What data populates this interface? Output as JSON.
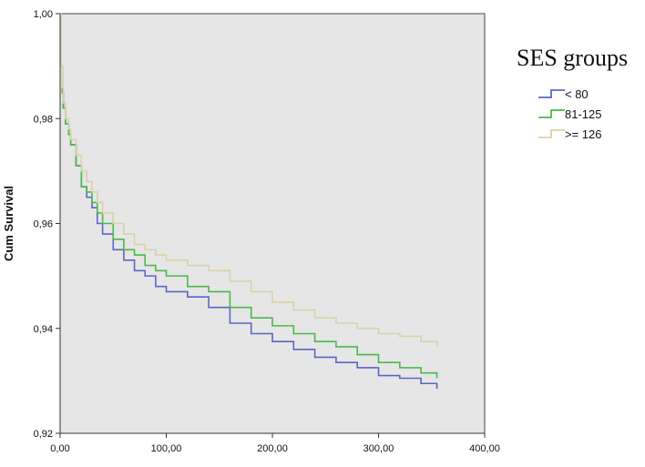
{
  "chart_data": {
    "type": "line",
    "title": "",
    "xlabel": "",
    "ylabel": "Cum Survival",
    "xlim": [
      0,
      400
    ],
    "ylim": [
      0.92,
      1.0
    ],
    "grid": false,
    "step": true,
    "background_color": "#e6e6e6",
    "legend": {
      "title": "SES groups",
      "placement": "right"
    },
    "x_ticks": [
      {
        "value": 0,
        "label": "0,00"
      },
      {
        "value": 100,
        "label": "100,00"
      },
      {
        "value": 200,
        "label": "200,00"
      },
      {
        "value": 300,
        "label": "300,00"
      },
      {
        "value": 400,
        "label": "400,00"
      }
    ],
    "y_ticks": [
      {
        "value": 0.92,
        "label": "0,92"
      },
      {
        "value": 0.94,
        "label": "0,94"
      },
      {
        "value": 0.96,
        "label": "0,96"
      },
      {
        "value": 0.98,
        "label": "0,98"
      },
      {
        "value": 1.0,
        "label": "1,00"
      }
    ],
    "series": [
      {
        "name": "< 80",
        "color": "#5a67c6",
        "x": [
          0,
          1,
          2,
          3,
          5,
          8,
          10,
          15,
          20,
          25,
          30,
          35,
          40,
          50,
          60,
          70,
          80,
          90,
          100,
          120,
          140,
          160,
          180,
          200,
          220,
          240,
          260,
          280,
          300,
          320,
          340,
          355
        ],
        "y": [
          1.0,
          0.99,
          0.985,
          0.982,
          0.979,
          0.977,
          0.975,
          0.971,
          0.967,
          0.965,
          0.963,
          0.96,
          0.958,
          0.955,
          0.953,
          0.951,
          0.95,
          0.948,
          0.947,
          0.946,
          0.944,
          0.941,
          0.939,
          0.9375,
          0.936,
          0.9345,
          0.9335,
          0.9325,
          0.931,
          0.9305,
          0.9295,
          0.9285
        ]
      },
      {
        "name": "81-125",
        "color": "#4cb84c",
        "x": [
          0,
          1,
          2,
          3,
          5,
          8,
          10,
          15,
          20,
          25,
          30,
          35,
          40,
          50,
          60,
          70,
          80,
          90,
          100,
          120,
          140,
          160,
          180,
          200,
          220,
          240,
          260,
          280,
          300,
          320,
          340,
          355
        ],
        "y": [
          1.0,
          0.99,
          0.985,
          0.982,
          0.979,
          0.977,
          0.975,
          0.971,
          0.967,
          0.966,
          0.964,
          0.962,
          0.96,
          0.957,
          0.955,
          0.954,
          0.952,
          0.951,
          0.95,
          0.948,
          0.947,
          0.944,
          0.942,
          0.9405,
          0.939,
          0.9375,
          0.9365,
          0.935,
          0.9335,
          0.9325,
          0.9315,
          0.9305
        ]
      },
      {
        "name": ">= 126",
        "color": "#d8d2a8",
        "x": [
          0,
          1,
          2,
          3,
          5,
          8,
          10,
          15,
          20,
          25,
          30,
          35,
          40,
          50,
          60,
          70,
          80,
          90,
          100,
          120,
          140,
          160,
          180,
          200,
          220,
          240,
          260,
          280,
          300,
          320,
          340,
          355
        ],
        "y": [
          1.0,
          0.99,
          0.986,
          0.983,
          0.98,
          0.978,
          0.976,
          0.973,
          0.97,
          0.968,
          0.966,
          0.964,
          0.962,
          0.96,
          0.958,
          0.956,
          0.955,
          0.954,
          0.953,
          0.952,
          0.951,
          0.949,
          0.947,
          0.945,
          0.9435,
          0.942,
          0.941,
          0.94,
          0.939,
          0.9385,
          0.9375,
          0.9365
        ]
      }
    ]
  }
}
